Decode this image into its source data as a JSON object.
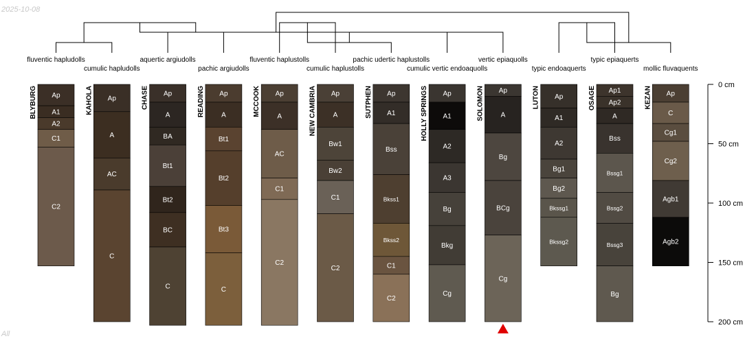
{
  "date_label": "2025-10-08",
  "footer_label": "All",
  "chart_data": {
    "type": "soil-profile-sketch",
    "depth_unit": "cm",
    "depth_axis": {
      "min": 0,
      "max": 200,
      "ticks": [
        0,
        50,
        100,
        150,
        200
      ],
      "tick_labels": [
        "0 cm",
        "50 cm",
        "100 cm",
        "150 cm",
        "200 cm"
      ]
    },
    "dendrogram": {
      "taxa": [
        "fluventic hapludolls",
        "cumulic hapludolls",
        "aquertic argiudolls",
        "pachic argiudolls",
        "fluventic haplustolls",
        "cumulic haplustolls",
        "pachic udertic haplustolls",
        "cumulic vertic endoaquolls",
        "vertic epiaquolls",
        "typic endoaquerts",
        "typic epiaquerts",
        "mollic fluvaquents"
      ],
      "merges": [
        [
          0,
          1
        ],
        [
          2,
          3
        ],
        [
          12,
          13
        ],
        [
          4,
          5
        ],
        [
          15,
          6
        ],
        [
          7,
          8
        ],
        [
          9,
          10
        ],
        [
          18,
          11
        ],
        [
          16,
          17
        ],
        [
          14,
          20
        ],
        [
          21,
          19
        ]
      ]
    },
    "profiles": [
      {
        "name": "BLYBURG",
        "horizons": [
          {
            "name": "Ap",
            "top": 0,
            "bottom": 18,
            "color": "#3b2f26"
          },
          {
            "name": "A1",
            "top": 18,
            "bottom": 28,
            "color": "#3a2d22"
          },
          {
            "name": "A2",
            "top": 28,
            "bottom": 38,
            "color": "#4a3a2b"
          },
          {
            "name": "C1",
            "top": 38,
            "bottom": 53,
            "color": "#6f5c48"
          },
          {
            "name": "C2",
            "top": 53,
            "bottom": 153,
            "color": "#6c5a4b"
          }
        ]
      },
      {
        "name": "KAHOLA",
        "horizons": [
          {
            "name": "Ap",
            "top": 0,
            "bottom": 23,
            "color": "#3a2f26"
          },
          {
            "name": "A",
            "top": 23,
            "bottom": 62,
            "color": "#3c2e21"
          },
          {
            "name": "AC",
            "top": 62,
            "bottom": 89,
            "color": "#4a3b2c"
          },
          {
            "name": "C",
            "top": 89,
            "bottom": 200,
            "color": "#5a4430"
          }
        ]
      },
      {
        "name": "CHASE",
        "horizons": [
          {
            "name": "Ap",
            "top": 0,
            "bottom": 15,
            "color": "#3a3029"
          },
          {
            "name": "A",
            "top": 15,
            "bottom": 36,
            "color": "#2c2622"
          },
          {
            "name": "BA",
            "top": 36,
            "bottom": 51,
            "color": "#302922"
          },
          {
            "name": "Bt1",
            "top": 51,
            "bottom": 86,
            "color": "#4b4038"
          },
          {
            "name": "Bt2",
            "top": 86,
            "bottom": 108,
            "color": "#30251c"
          },
          {
            "name": "BC",
            "top": 108,
            "bottom": 137,
            "color": "#3e2f22"
          },
          {
            "name": "C",
            "top": 137,
            "bottom": 203,
            "color": "#4e4233"
          }
        ]
      },
      {
        "name": "READING",
        "horizons": [
          {
            "name": "Ap",
            "top": 0,
            "bottom": 15,
            "color": "#4b3c2f"
          },
          {
            "name": "A",
            "top": 15,
            "bottom": 36,
            "color": "#3b2e23"
          },
          {
            "name": "Bt1",
            "top": 36,
            "bottom": 56,
            "color": "#5a4330"
          },
          {
            "name": "Bt2",
            "top": 56,
            "bottom": 102,
            "color": "#553f2c"
          },
          {
            "name": "Bt3",
            "top": 102,
            "bottom": 142,
            "color": "#7a5a38"
          },
          {
            "name": "C",
            "top": 142,
            "bottom": 203,
            "color": "#7c5f3c"
          }
        ]
      },
      {
        "name": "MCCOOK",
        "horizons": [
          {
            "name": "Ap",
            "top": 0,
            "bottom": 15,
            "color": "#4b3f33"
          },
          {
            "name": "A",
            "top": 15,
            "bottom": 38,
            "color": "#3c3027"
          },
          {
            "name": "AC",
            "top": 38,
            "bottom": 79,
            "color": "#6e5c49"
          },
          {
            "name": "C1",
            "top": 79,
            "bottom": 97,
            "color": "#7f6a55"
          },
          {
            "name": "C2",
            "top": 97,
            "bottom": 203,
            "color": "#8a7762"
          }
        ]
      },
      {
        "name": "NEW CAMBRIA",
        "horizons": [
          {
            "name": "Ap",
            "top": 0,
            "bottom": 15,
            "color": "#4a4036"
          },
          {
            "name": "A",
            "top": 15,
            "bottom": 36,
            "color": "#3c3026"
          },
          {
            "name": "Bw1",
            "top": 36,
            "bottom": 64,
            "color": "#4d4439"
          },
          {
            "name": "Bw2",
            "top": 64,
            "bottom": 81,
            "color": "#4a4036"
          },
          {
            "name": "C1",
            "top": 81,
            "bottom": 109,
            "color": "#6a6157"
          },
          {
            "name": "C2",
            "top": 109,
            "bottom": 200,
            "color": "#6b5a47"
          }
        ]
      },
      {
        "name": "SUTPHEN",
        "horizons": [
          {
            "name": "Ap",
            "top": 0,
            "bottom": 15,
            "color": "#3d3630"
          },
          {
            "name": "A1",
            "top": 15,
            "bottom": 33,
            "color": "#332d28"
          },
          {
            "name": "Bss",
            "top": 33,
            "bottom": 76,
            "color": "#4a4138"
          },
          {
            "name": "Bkss1",
            "top": 76,
            "bottom": 117,
            "color": "#4e3f30"
          },
          {
            "name": "Bkss2",
            "top": 117,
            "bottom": 145,
            "color": "#6e5738"
          },
          {
            "name": "C1",
            "top": 145,
            "bottom": 160,
            "color": "#6a5440"
          },
          {
            "name": "C2",
            "top": 160,
            "bottom": 200,
            "color": "#8a7158"
          }
        ]
      },
      {
        "name": "HOLLY SPRINGS",
        "horizons": [
          {
            "name": "Ap",
            "top": 0,
            "bottom": 15,
            "color": "#3a3530"
          },
          {
            "name": "A1",
            "top": 15,
            "bottom": 38,
            "color": "#0d0b0a"
          },
          {
            "name": "A2",
            "top": 38,
            "bottom": 66,
            "color": "#2d2925"
          },
          {
            "name": "A3",
            "top": 66,
            "bottom": 91,
            "color": "#3b3631"
          },
          {
            "name": "Bg",
            "top": 91,
            "bottom": 119,
            "color": "#46413a"
          },
          {
            "name": "Bkg",
            "top": 119,
            "bottom": 152,
            "color": "#413c35"
          },
          {
            "name": "Cg",
            "top": 152,
            "bottom": 200,
            "color": "#5f5a50"
          }
        ]
      },
      {
        "name": "SOLOMON",
        "horizons": [
          {
            "name": "Ap",
            "top": 0,
            "bottom": 10,
            "color": "#3b3631"
          },
          {
            "name": "A",
            "top": 10,
            "bottom": 41,
            "color": "#272320"
          },
          {
            "name": "Bg",
            "top": 41,
            "bottom": 81,
            "color": "#4d463f"
          },
          {
            "name": "BCg",
            "top": 81,
            "bottom": 127,
            "color": "#4a433c"
          },
          {
            "name": "Cg",
            "top": 127,
            "bottom": 200,
            "color": "#6c6458"
          }
        ]
      },
      {
        "name": "LUTON",
        "horizons": [
          {
            "name": "Ap",
            "top": 0,
            "bottom": 20,
            "color": "#36302a"
          },
          {
            "name": "A1",
            "top": 20,
            "bottom": 36,
            "color": "#2f2a25"
          },
          {
            "name": "A2",
            "top": 36,
            "bottom": 63,
            "color": "#3e3832"
          },
          {
            "name": "Bg1",
            "top": 63,
            "bottom": 79,
            "color": "#4a443c"
          },
          {
            "name": "Bg2",
            "top": 79,
            "bottom": 96,
            "color": "#5e584f"
          },
          {
            "name": "Bkssg1",
            "top": 96,
            "bottom": 112,
            "color": "#5a554b"
          },
          {
            "name": "Bkssg2",
            "top": 112,
            "bottom": 153,
            "color": "#5d594f"
          }
        ]
      },
      {
        "name": "OSAGE",
        "horizons": [
          {
            "name": "Ap1",
            "top": 0,
            "bottom": 10,
            "color": "#3d342c"
          },
          {
            "name": "Ap2",
            "top": 10,
            "bottom": 20,
            "color": "#3a322a"
          },
          {
            "name": "A",
            "top": 20,
            "bottom": 33,
            "color": "#2f2924"
          },
          {
            "name": "Bss",
            "top": 33,
            "bottom": 58,
            "color": "#39332e"
          },
          {
            "name": "Bssg1",
            "top": 58,
            "bottom": 91,
            "color": "#5c564d"
          },
          {
            "name": "Bssg2",
            "top": 91,
            "bottom": 117,
            "color": "#514b43"
          },
          {
            "name": "Bssg3",
            "top": 117,
            "bottom": 153,
            "color": "#48433b"
          },
          {
            "name": "Bg",
            "top": 153,
            "bottom": 200,
            "color": "#5f594f"
          }
        ]
      },
      {
        "name": "KEZAN",
        "horizons": [
          {
            "name": "Ap",
            "top": 0,
            "bottom": 15,
            "color": "#4b3f33"
          },
          {
            "name": "C",
            "top": 15,
            "bottom": 33,
            "color": "#6a5a49"
          },
          {
            "name": "Cg1",
            "top": 33,
            "bottom": 48,
            "color": "#5a4d3f"
          },
          {
            "name": "Cg2",
            "top": 48,
            "bottom": 81,
            "color": "#6e5f4d"
          },
          {
            "name": "Agb1",
            "top": 81,
            "bottom": 112,
            "color": "#403a34"
          },
          {
            "name": "Agb2",
            "top": 112,
            "bottom": 153,
            "color": "#0c0b0a"
          }
        ]
      }
    ],
    "depth_truncated_marker": {
      "profile": "SOLOMON",
      "symbol": "▲",
      "color": "#e00000"
    }
  }
}
